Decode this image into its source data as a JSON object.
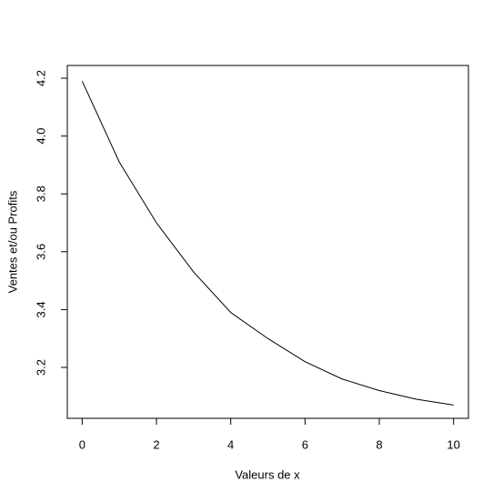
{
  "chart_data": {
    "type": "line",
    "x_label": "Valeurs de x",
    "y_label": "Ventes et/ou Profits",
    "x": [
      0,
      1,
      2,
      3,
      4,
      5,
      6,
      7,
      8,
      9,
      10
    ],
    "series": [
      {
        "color": "#000000",
        "values": [
          4.19,
          3.91,
          3.7,
          3.53,
          3.39,
          3.3,
          3.22,
          3.16,
          3.12,
          3.09,
          3.07
        ]
      }
    ],
    "xlim": [
      -0.4,
      10.4
    ],
    "ylim": [
      3.024,
      4.244
    ],
    "xticks": [
      0,
      2,
      4,
      6,
      8,
      10
    ],
    "yticks": [
      3.2,
      3.4,
      3.6,
      3.8,
      {
        "value": 4,
        "label": "4.0"
      },
      4.2
    ]
  }
}
